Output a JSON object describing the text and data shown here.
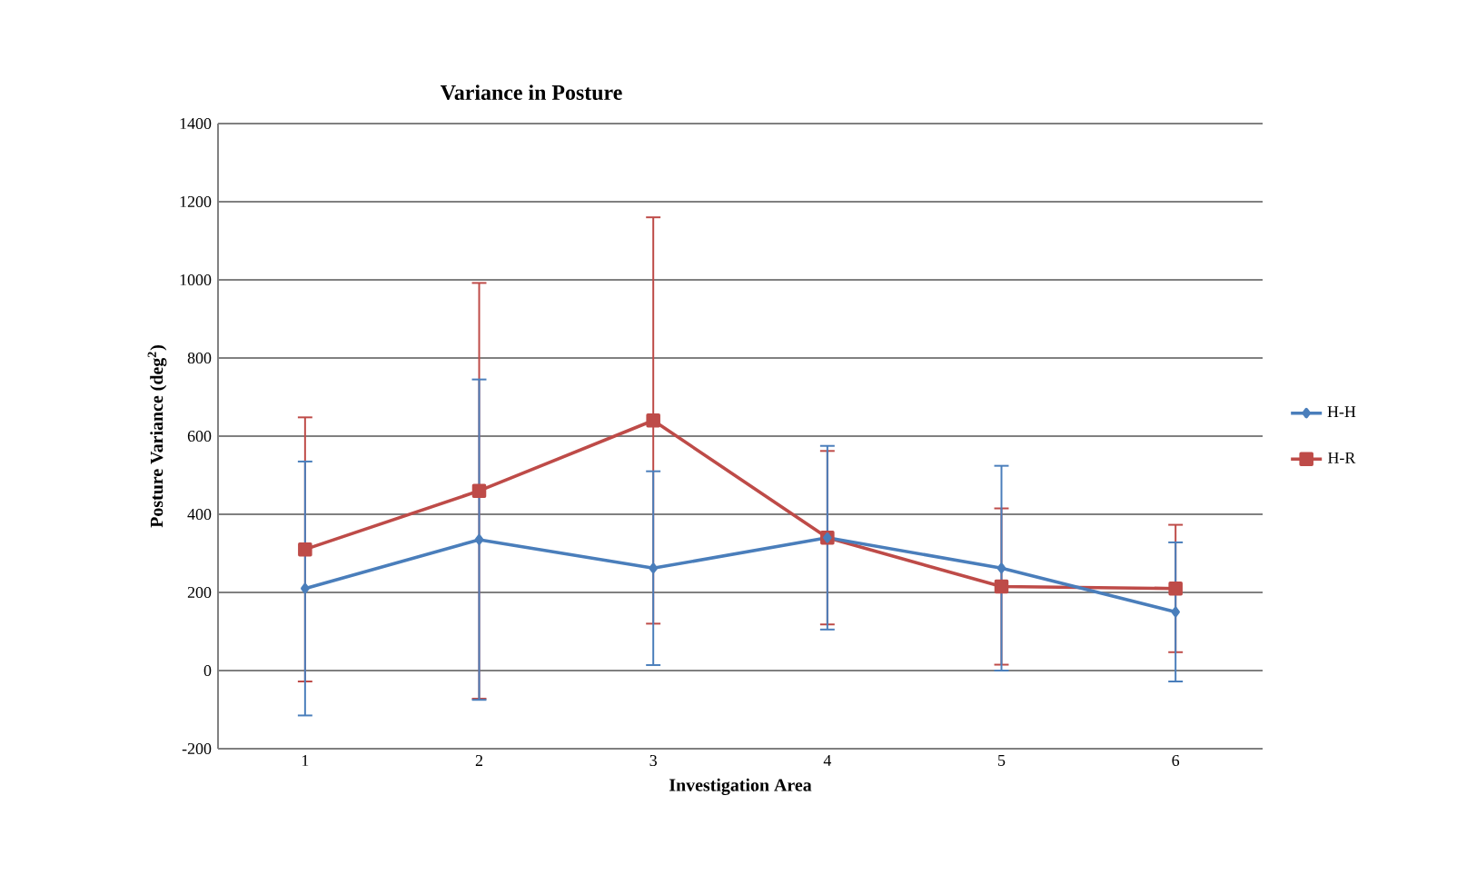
{
  "chart_data": {
    "type": "line",
    "title": "Variance in Posture",
    "xlabel": "Investigation Area",
    "ylabel": "Posture Variance (deg$^{2}$)",
    "categories": [
      "1",
      "2",
      "3",
      "4",
      "5",
      "6"
    ],
    "series": [
      {
        "name": "H-H",
        "color": "#4a7ebb",
        "marker": "diamond",
        "values": [
          210,
          335,
          262,
          340,
          262,
          150
        ],
        "errors": [
          325,
          410,
          248,
          235,
          262,
          178
        ]
      },
      {
        "name": "H-R",
        "color": "#be4b48",
        "marker": "square",
        "values": [
          310,
          460,
          640,
          340,
          215,
          210
        ],
        "errors": [
          338,
          532,
          520,
          222,
          200,
          163
        ]
      }
    ],
    "ylim": [
      -200,
      1400
    ],
    "yticks": [
      -200,
      0,
      200,
      400,
      600,
      800,
      1000,
      1200,
      1400
    ],
    "grid": "y",
    "legend": "right",
    "line_style": "solid"
  }
}
